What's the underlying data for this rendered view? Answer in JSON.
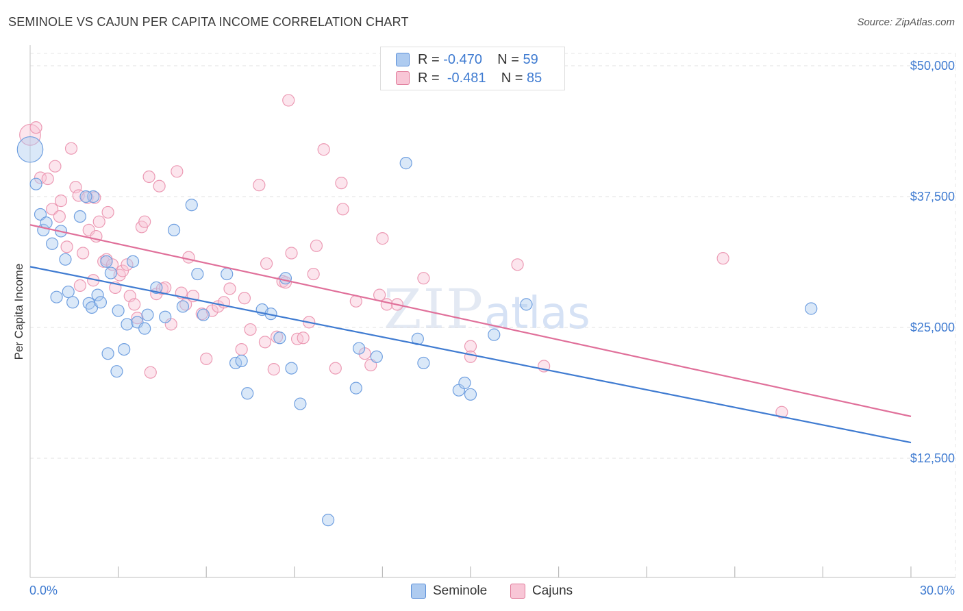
{
  "title": "SEMINOLE VS CAJUN PER CAPITA INCOME CORRELATION CHART",
  "source": "Source: ZipAtlas.com",
  "watermark": {
    "bold": "ZIP",
    "light": "atlas"
  },
  "legend": {
    "rows": [
      {
        "r_label": "R =",
        "r_value": "-0.470",
        "n_label": "N =",
        "n_value": "59",
        "color": "#aecbf0",
        "border": "#5b8fd8"
      },
      {
        "r_label": "R =",
        "r_value": "-0.481",
        "n_label": "N =",
        "n_value": "85",
        "color": "#f8c6d6",
        "border": "#e07898"
      }
    ]
  },
  "bottom_legend": [
    {
      "label": "Seminole",
      "color": "#aecbf0",
      "border": "#5b8fd8"
    },
    {
      "label": "Cajuns",
      "color": "#f8c6d6",
      "border": "#e07898"
    }
  ],
  "axes": {
    "x_min_label": "0.0%",
    "x_max_label": "30.0%",
    "y_label": "Per Capita Income",
    "y_ticks": [
      "$50,000",
      "$37,500",
      "$25,000",
      "$12,500"
    ]
  },
  "chart_data": {
    "type": "scatter",
    "title": "SEMINOLE VS CAJUN PER CAPITA INCOME CORRELATION CHART",
    "xlabel": "",
    "ylabel": "Per Capita Income",
    "xlim": [
      0,
      30
    ],
    "ylim": [
      0,
      52000
    ],
    "y_ticks": [
      12500,
      25000,
      37500,
      50000
    ],
    "grid": true,
    "colors": {
      "Seminole": "#3f7bd1",
      "Cajuns": "#e0709a"
    },
    "series": [
      {
        "name": "Seminole",
        "trend": {
          "x": [
            0,
            30
          ],
          "y": [
            30800,
            14000
          ]
        },
        "points": [
          [
            0.0,
            42000,
            2.2
          ],
          [
            0.2,
            38700,
            1
          ],
          [
            0.35,
            35800,
            1
          ],
          [
            0.45,
            34300,
            1
          ],
          [
            0.55,
            35000,
            1
          ],
          [
            0.75,
            33000,
            1
          ],
          [
            1.05,
            34200,
            1
          ],
          [
            1.2,
            31500,
            1
          ],
          [
            0.9,
            27900,
            1
          ],
          [
            1.3,
            28400,
            1
          ],
          [
            1.45,
            27400,
            1
          ],
          [
            2.15,
            37500,
            1
          ],
          [
            1.9,
            37500,
            1
          ],
          [
            1.7,
            35600,
            1
          ],
          [
            2.0,
            27300,
            1
          ],
          [
            2.1,
            26900,
            1
          ],
          [
            2.3,
            28100,
            1
          ],
          [
            2.4,
            27400,
            1
          ],
          [
            2.6,
            31300,
            1
          ],
          [
            2.75,
            30200,
            1
          ],
          [
            2.65,
            22500,
            1
          ],
          [
            2.95,
            20800,
            1
          ],
          [
            3.0,
            26600,
            1
          ],
          [
            3.2,
            22900,
            1
          ],
          [
            3.3,
            25300,
            1
          ],
          [
            3.5,
            31300,
            1
          ],
          [
            3.65,
            25500,
            1
          ],
          [
            3.9,
            24900,
            1
          ],
          [
            4.0,
            26200,
            1
          ],
          [
            4.3,
            28800,
            1
          ],
          [
            4.6,
            26000,
            1
          ],
          [
            4.9,
            34300,
            1
          ],
          [
            5.2,
            27000,
            1
          ],
          [
            5.5,
            36700,
            1
          ],
          [
            5.7,
            30100,
            1
          ],
          [
            5.9,
            26200,
            1
          ],
          [
            6.7,
            30100,
            1
          ],
          [
            7.0,
            21600,
            1
          ],
          [
            7.2,
            21800,
            1
          ],
          [
            7.4,
            18700,
            1
          ],
          [
            7.9,
            26700,
            1
          ],
          [
            8.2,
            26300,
            1
          ],
          [
            8.5,
            24000,
            1
          ],
          [
            8.7,
            29700,
            1
          ],
          [
            8.9,
            21100,
            1
          ],
          [
            9.2,
            17700,
            1
          ],
          [
            10.15,
            6600,
            1
          ],
          [
            11.1,
            19200,
            1
          ],
          [
            11.2,
            23000,
            1
          ],
          [
            11.8,
            22200,
            1
          ],
          [
            12.8,
            40700,
            1
          ],
          [
            13.2,
            23900,
            1
          ],
          [
            13.4,
            21600,
            1
          ],
          [
            14.6,
            19000,
            1
          ],
          [
            14.8,
            19700,
            1
          ],
          [
            15.0,
            18600,
            1
          ],
          [
            15.8,
            24300,
            1
          ],
          [
            16.9,
            27200,
            1
          ],
          [
            26.6,
            26800,
            1
          ]
        ]
      },
      {
        "name": "Cajuns",
        "trend": {
          "x": [
            0,
            30
          ],
          "y": [
            34800,
            16500
          ]
        },
        "points": [
          [
            0.0,
            43400,
            1.8
          ],
          [
            0.2,
            44100,
            1
          ],
          [
            0.35,
            39300,
            1
          ],
          [
            0.6,
            39200,
            1
          ],
          [
            0.75,
            36300,
            1
          ],
          [
            0.85,
            40400,
            1
          ],
          [
            1.0,
            35600,
            1
          ],
          [
            1.05,
            37100,
            1
          ],
          [
            1.25,
            32700,
            1
          ],
          [
            1.4,
            42100,
            1
          ],
          [
            1.55,
            38400,
            1
          ],
          [
            1.65,
            37600,
            1
          ],
          [
            1.7,
            29000,
            1
          ],
          [
            1.8,
            32100,
            1
          ],
          [
            1.95,
            37400,
            1
          ],
          [
            2.0,
            34300,
            1
          ],
          [
            2.15,
            29500,
            1
          ],
          [
            2.2,
            37400,
            1
          ],
          [
            2.25,
            33700,
            1
          ],
          [
            2.35,
            35100,
            1
          ],
          [
            2.5,
            31300,
            1
          ],
          [
            2.6,
            31500,
            1
          ],
          [
            2.65,
            36000,
            1
          ],
          [
            2.8,
            31000,
            1
          ],
          [
            2.9,
            28800,
            1
          ],
          [
            3.05,
            30000,
            1
          ],
          [
            3.15,
            30400,
            1
          ],
          [
            3.3,
            31000,
            1
          ],
          [
            3.4,
            28000,
            1
          ],
          [
            3.55,
            27200,
            1
          ],
          [
            3.65,
            25900,
            1
          ],
          [
            3.8,
            34600,
            1
          ],
          [
            3.9,
            35100,
            1
          ],
          [
            4.05,
            39400,
            1
          ],
          [
            4.1,
            20700,
            1
          ],
          [
            4.3,
            28200,
            1
          ],
          [
            4.4,
            38500,
            1
          ],
          [
            4.5,
            28700,
            1
          ],
          [
            4.6,
            28800,
            1
          ],
          [
            4.8,
            25300,
            1
          ],
          [
            5.0,
            39900,
            1
          ],
          [
            5.15,
            28300,
            1
          ],
          [
            5.3,
            27200,
            1
          ],
          [
            5.4,
            31700,
            1
          ],
          [
            5.55,
            28000,
            1
          ],
          [
            5.85,
            26300,
            1
          ],
          [
            6.0,
            22000,
            1
          ],
          [
            6.2,
            26600,
            1
          ],
          [
            6.4,
            27000,
            1
          ],
          [
            6.6,
            27400,
            1
          ],
          [
            6.8,
            28700,
            1
          ],
          [
            7.2,
            22900,
            1
          ],
          [
            7.3,
            27800,
            1
          ],
          [
            7.5,
            24800,
            1
          ],
          [
            7.8,
            38600,
            1
          ],
          [
            8.0,
            23600,
            1
          ],
          [
            8.05,
            31100,
            1
          ],
          [
            8.3,
            21000,
            1
          ],
          [
            8.4,
            24100,
            1
          ],
          [
            8.6,
            29400,
            1
          ],
          [
            8.7,
            29300,
            1
          ],
          [
            8.8,
            46700,
            1
          ],
          [
            8.9,
            32100,
            1
          ],
          [
            9.1,
            23900,
            1
          ],
          [
            9.3,
            24000,
            1
          ],
          [
            9.5,
            25500,
            1
          ],
          [
            9.65,
            30100,
            1
          ],
          [
            9.75,
            32800,
            1
          ],
          [
            10.0,
            42000,
            1
          ],
          [
            10.4,
            21100,
            1
          ],
          [
            10.6,
            38800,
            1
          ],
          [
            10.65,
            36300,
            1
          ],
          [
            11.1,
            27500,
            1
          ],
          [
            11.4,
            22500,
            1
          ],
          [
            11.6,
            21400,
            1
          ],
          [
            11.9,
            28100,
            1
          ],
          [
            12.0,
            33500,
            1
          ],
          [
            12.15,
            27200,
            1
          ],
          [
            12.5,
            27200,
            1
          ],
          [
            13.4,
            29700,
            1
          ],
          [
            15.0,
            23200,
            1
          ],
          [
            15.0,
            22200,
            1
          ],
          [
            16.6,
            31000,
            1
          ],
          [
            17.5,
            21300,
            1
          ],
          [
            23.6,
            31600,
            1
          ],
          [
            25.6,
            16900,
            1
          ]
        ]
      }
    ]
  }
}
